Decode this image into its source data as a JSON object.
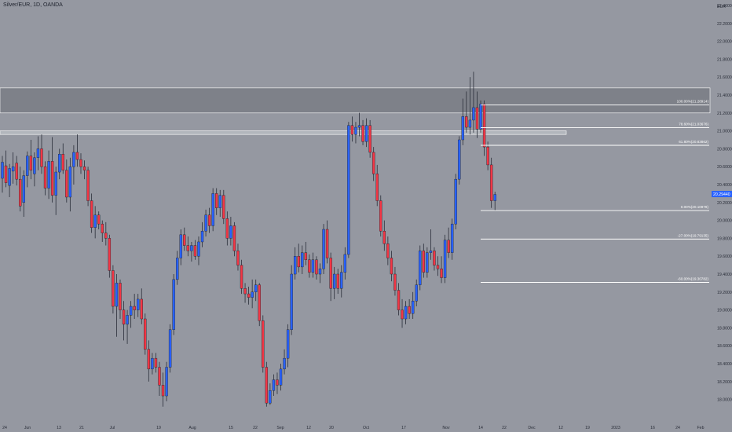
{
  "header": {
    "symbol": "Silver/EUR, 1D, OANDA",
    "currency": "EUR"
  },
  "colors": {
    "background": "#9598a1",
    "up": "#2962ff",
    "down": "#f23645",
    "wick": "#2a2e39",
    "zone": "#787b86",
    "level_line": "#ffffff",
    "price_tag": "#2962ff"
  },
  "chart_data": {
    "type": "candlestick",
    "ylim": [
      17.9,
      22.4
    ],
    "y_ticks": [
      "22.40000",
      "22.20000",
      "22.00000",
      "21.80000",
      "21.60000",
      "21.40000",
      "21.20000",
      "21.00000",
      "20.80000",
      "20.60000",
      "20.40000",
      "20.20000",
      "20.00000",
      "19.80000",
      "19.60000",
      "19.40000",
      "19.20000",
      "19.00000",
      "18.80000",
      "18.60000",
      "18.40000",
      "18.20000",
      "18.00000"
    ],
    "x_ticks": [
      "24",
      "Jun",
      "13",
      "21",
      "Jul",
      "19",
      "Aug",
      "15",
      "22",
      "Sep",
      "12",
      "20",
      "Oct",
      "17",
      "Nov",
      "14",
      "22",
      "Dec",
      "12",
      "19",
      "2023",
      "16",
      "24",
      "Feb"
    ],
    "current_price": "20.29440",
    "fib_levels": [
      {
        "label": "100.00%(21.28914)",
        "value": 21.28914
      },
      {
        "label": "78.60%(21.03676)",
        "value": 21.03676
      },
      {
        "label": "61.80%(20.83862)",
        "value": 20.83862
      },
      {
        "label": "0.00%(20.10978)",
        "value": 20.10978
      },
      {
        "label": "-27.00%(19.79135)",
        "value": 19.79135
      },
      {
        "label": "-60.00%(19.30782)",
        "value": 19.30782
      }
    ],
    "zones": [
      {
        "name": "upper-zone",
        "from": 21.2,
        "to": 21.48
      },
      {
        "name": "thin-zone",
        "from": 20.96,
        "to": 21.0
      }
    ],
    "candles": [
      {
        "o": 20.47,
        "h": 20.72,
        "l": 20.31,
        "c": 20.65
      },
      {
        "o": 20.61,
        "h": 20.78,
        "l": 20.37,
        "c": 20.42
      },
      {
        "o": 20.39,
        "h": 20.63,
        "l": 20.26,
        "c": 20.58
      },
      {
        "o": 20.55,
        "h": 20.76,
        "l": 20.41,
        "c": 20.6
      },
      {
        "o": 20.64,
        "h": 20.72,
        "l": 20.39,
        "c": 20.46
      },
      {
        "o": 20.46,
        "h": 20.6,
        "l": 20.1,
        "c": 20.16
      },
      {
        "o": 20.2,
        "h": 20.56,
        "l": 20.04,
        "c": 20.5
      },
      {
        "o": 20.5,
        "h": 20.77,
        "l": 20.37,
        "c": 20.72
      },
      {
        "o": 20.72,
        "h": 20.9,
        "l": 20.46,
        "c": 20.56
      },
      {
        "o": 20.52,
        "h": 20.76,
        "l": 20.38,
        "c": 20.7
      },
      {
        "o": 20.7,
        "h": 20.94,
        "l": 20.56,
        "c": 20.8
      },
      {
        "o": 20.8,
        "h": 20.96,
        "l": 20.52,
        "c": 20.6
      },
      {
        "o": 20.6,
        "h": 20.66,
        "l": 20.28,
        "c": 20.36
      },
      {
        "o": 20.36,
        "h": 20.78,
        "l": 20.24,
        "c": 20.66
      },
      {
        "o": 20.66,
        "h": 20.93,
        "l": 20.2,
        "c": 20.28
      },
      {
        "o": 20.28,
        "h": 20.6,
        "l": 20.06,
        "c": 20.54
      },
      {
        "o": 20.54,
        "h": 20.8,
        "l": 20.46,
        "c": 20.74
      },
      {
        "o": 20.74,
        "h": 20.86,
        "l": 20.52,
        "c": 20.56
      },
      {
        "o": 20.56,
        "h": 20.68,
        "l": 20.2,
        "c": 20.26
      },
      {
        "o": 20.26,
        "h": 20.7,
        "l": 20.1,
        "c": 20.6
      },
      {
        "o": 20.6,
        "h": 20.84,
        "l": 20.4,
        "c": 20.76
      },
      {
        "o": 20.76,
        "h": 20.96,
        "l": 20.6,
        "c": 20.68
      },
      {
        "o": 20.68,
        "h": 20.75,
        "l": 20.52,
        "c": 20.6
      },
      {
        "o": 20.6,
        "h": 20.67,
        "l": 20.46,
        "c": 20.56
      },
      {
        "o": 20.56,
        "h": 20.6,
        "l": 20.16,
        "c": 20.22
      },
      {
        "o": 20.22,
        "h": 20.3,
        "l": 19.86,
        "c": 19.92
      },
      {
        "o": 19.92,
        "h": 20.16,
        "l": 19.8,
        "c": 20.06
      },
      {
        "o": 20.06,
        "h": 20.1,
        "l": 19.9,
        "c": 19.96
      },
      {
        "o": 19.96,
        "h": 20.0,
        "l": 19.76,
        "c": 19.86
      },
      {
        "o": 19.86,
        "h": 19.98,
        "l": 19.72,
        "c": 19.8
      },
      {
        "o": 19.8,
        "h": 19.84,
        "l": 19.36,
        "c": 19.44
      },
      {
        "o": 19.44,
        "h": 19.5,
        "l": 18.96,
        "c": 19.04
      },
      {
        "o": 19.04,
        "h": 19.4,
        "l": 18.7,
        "c": 19.3
      },
      {
        "o": 19.3,
        "h": 19.34,
        "l": 18.9,
        "c": 19.0
      },
      {
        "o": 19.0,
        "h": 19.1,
        "l": 18.66,
        "c": 18.84
      },
      {
        "o": 18.84,
        "h": 19.0,
        "l": 18.62,
        "c": 18.94
      },
      {
        "o": 18.94,
        "h": 19.1,
        "l": 18.8,
        "c": 19.04
      },
      {
        "o": 19.04,
        "h": 19.18,
        "l": 18.9,
        "c": 19.0
      },
      {
        "o": 19.0,
        "h": 19.18,
        "l": 18.92,
        "c": 19.12
      },
      {
        "o": 19.12,
        "h": 19.24,
        "l": 18.84,
        "c": 18.9
      },
      {
        "o": 18.9,
        "h": 18.96,
        "l": 18.5,
        "c": 18.56
      },
      {
        "o": 18.56,
        "h": 18.66,
        "l": 18.2,
        "c": 18.34
      },
      {
        "o": 18.34,
        "h": 18.52,
        "l": 18.28,
        "c": 18.46
      },
      {
        "o": 18.46,
        "h": 18.52,
        "l": 18.3,
        "c": 18.36
      },
      {
        "o": 18.36,
        "h": 18.42,
        "l": 18.04,
        "c": 18.16
      },
      {
        "o": 18.16,
        "h": 18.3,
        "l": 17.92,
        "c": 18.04
      },
      {
        "o": 18.04,
        "h": 18.42,
        "l": 17.98,
        "c": 18.36
      },
      {
        "o": 18.36,
        "h": 18.84,
        "l": 18.3,
        "c": 18.78
      },
      {
        "o": 18.78,
        "h": 19.4,
        "l": 18.72,
        "c": 19.34
      },
      {
        "o": 19.34,
        "h": 19.66,
        "l": 19.28,
        "c": 19.58
      },
      {
        "o": 19.58,
        "h": 19.9,
        "l": 19.5,
        "c": 19.84
      },
      {
        "o": 19.84,
        "h": 19.92,
        "l": 19.66,
        "c": 19.72
      },
      {
        "o": 19.72,
        "h": 19.82,
        "l": 19.6,
        "c": 19.66
      },
      {
        "o": 19.66,
        "h": 19.76,
        "l": 19.54,
        "c": 19.72
      },
      {
        "o": 19.72,
        "h": 19.78,
        "l": 19.56,
        "c": 19.6
      },
      {
        "o": 19.6,
        "h": 19.82,
        "l": 19.5,
        "c": 19.76
      },
      {
        "o": 19.76,
        "h": 19.98,
        "l": 19.7,
        "c": 19.88
      },
      {
        "o": 19.88,
        "h": 20.12,
        "l": 19.82,
        "c": 20.06
      },
      {
        "o": 20.06,
        "h": 20.14,
        "l": 19.86,
        "c": 19.94
      },
      {
        "o": 19.94,
        "h": 20.36,
        "l": 19.88,
        "c": 20.3
      },
      {
        "o": 20.3,
        "h": 20.36,
        "l": 20.06,
        "c": 20.14
      },
      {
        "o": 20.14,
        "h": 20.34,
        "l": 20.04,
        "c": 20.28
      },
      {
        "o": 20.28,
        "h": 20.34,
        "l": 19.96,
        "c": 20.02
      },
      {
        "o": 20.02,
        "h": 20.1,
        "l": 19.72,
        "c": 19.8
      },
      {
        "o": 19.8,
        "h": 20.04,
        "l": 19.72,
        "c": 19.94
      },
      {
        "o": 19.94,
        "h": 19.98,
        "l": 19.6,
        "c": 19.66
      },
      {
        "o": 19.66,
        "h": 19.74,
        "l": 19.44,
        "c": 19.5
      },
      {
        "o": 19.5,
        "h": 19.56,
        "l": 19.18,
        "c": 19.24
      },
      {
        "o": 19.24,
        "h": 19.3,
        "l": 19.08,
        "c": 19.18
      },
      {
        "o": 19.18,
        "h": 19.26,
        "l": 19.06,
        "c": 19.14
      },
      {
        "o": 19.14,
        "h": 19.34,
        "l": 19.02,
        "c": 19.2
      },
      {
        "o": 19.2,
        "h": 19.34,
        "l": 19.1,
        "c": 19.28
      },
      {
        "o": 19.28,
        "h": 19.3,
        "l": 18.82,
        "c": 18.88
      },
      {
        "o": 18.88,
        "h": 18.94,
        "l": 18.3,
        "c": 18.36
      },
      {
        "o": 18.36,
        "h": 18.42,
        "l": 17.92,
        "c": 17.96
      },
      {
        "o": 17.96,
        "h": 18.18,
        "l": 17.94,
        "c": 18.1
      },
      {
        "o": 18.1,
        "h": 18.28,
        "l": 18.04,
        "c": 18.22
      },
      {
        "o": 18.22,
        "h": 18.3,
        "l": 18.06,
        "c": 18.16
      },
      {
        "o": 18.16,
        "h": 18.4,
        "l": 18.1,
        "c": 18.34
      },
      {
        "o": 18.34,
        "h": 18.56,
        "l": 18.28,
        "c": 18.46
      },
      {
        "o": 18.46,
        "h": 18.84,
        "l": 18.36,
        "c": 18.78
      },
      {
        "o": 18.78,
        "h": 19.5,
        "l": 18.72,
        "c": 19.4
      },
      {
        "o": 19.4,
        "h": 19.7,
        "l": 19.34,
        "c": 19.6
      },
      {
        "o": 19.6,
        "h": 19.74,
        "l": 19.42,
        "c": 19.48
      },
      {
        "o": 19.48,
        "h": 19.72,
        "l": 19.4,
        "c": 19.64
      },
      {
        "o": 19.64,
        "h": 19.76,
        "l": 19.5,
        "c": 19.56
      },
      {
        "o": 19.56,
        "h": 19.62,
        "l": 19.36,
        "c": 19.42
      },
      {
        "o": 19.42,
        "h": 19.64,
        "l": 19.36,
        "c": 19.56
      },
      {
        "o": 19.56,
        "h": 19.6,
        "l": 19.34,
        "c": 19.4
      },
      {
        "o": 19.4,
        "h": 19.52,
        "l": 19.3,
        "c": 19.46
      },
      {
        "o": 19.46,
        "h": 19.96,
        "l": 19.4,
        "c": 19.9
      },
      {
        "o": 19.9,
        "h": 20.0,
        "l": 19.52,
        "c": 19.58
      },
      {
        "o": 19.58,
        "h": 19.64,
        "l": 19.1,
        "c": 19.24
      },
      {
        "o": 19.24,
        "h": 19.48,
        "l": 19.12,
        "c": 19.4
      },
      {
        "o": 19.4,
        "h": 19.46,
        "l": 19.18,
        "c": 19.24
      },
      {
        "o": 19.24,
        "h": 19.5,
        "l": 19.14,
        "c": 19.42
      },
      {
        "o": 19.42,
        "h": 19.7,
        "l": 19.34,
        "c": 19.62
      },
      {
        "o": 19.62,
        "h": 21.1,
        "l": 19.58,
        "c": 21.06
      },
      {
        "o": 21.06,
        "h": 21.16,
        "l": 20.88,
        "c": 20.96
      },
      {
        "o": 20.96,
        "h": 21.1,
        "l": 20.86,
        "c": 21.04
      },
      {
        "o": 21.04,
        "h": 21.2,
        "l": 20.94,
        "c": 21.06
      },
      {
        "o": 21.06,
        "h": 21.12,
        "l": 20.84,
        "c": 20.88
      },
      {
        "o": 20.88,
        "h": 21.14,
        "l": 20.82,
        "c": 21.06
      },
      {
        "o": 21.06,
        "h": 21.12,
        "l": 20.7,
        "c": 20.76
      },
      {
        "o": 20.76,
        "h": 20.82,
        "l": 20.44,
        "c": 20.52
      },
      {
        "o": 20.52,
        "h": 20.62,
        "l": 20.16,
        "c": 20.22
      },
      {
        "o": 20.22,
        "h": 20.28,
        "l": 19.82,
        "c": 19.88
      },
      {
        "o": 19.88,
        "h": 20.0,
        "l": 19.66,
        "c": 19.74
      },
      {
        "o": 19.74,
        "h": 19.82,
        "l": 19.5,
        "c": 19.58
      },
      {
        "o": 19.58,
        "h": 19.66,
        "l": 19.32,
        "c": 19.4
      },
      {
        "o": 19.4,
        "h": 19.48,
        "l": 19.16,
        "c": 19.22
      },
      {
        "o": 19.22,
        "h": 19.3,
        "l": 18.94,
        "c": 19.0
      },
      {
        "o": 19.0,
        "h": 19.12,
        "l": 18.8,
        "c": 18.9
      },
      {
        "o": 18.9,
        "h": 19.1,
        "l": 18.84,
        "c": 19.04
      },
      {
        "o": 19.04,
        "h": 19.12,
        "l": 18.9,
        "c": 18.96
      },
      {
        "o": 18.96,
        "h": 19.2,
        "l": 18.9,
        "c": 19.1
      },
      {
        "o": 19.1,
        "h": 19.34,
        "l": 19.04,
        "c": 19.28
      },
      {
        "o": 19.28,
        "h": 19.72,
        "l": 19.22,
        "c": 19.66
      },
      {
        "o": 19.66,
        "h": 19.74,
        "l": 19.36,
        "c": 19.42
      },
      {
        "o": 19.42,
        "h": 19.7,
        "l": 19.36,
        "c": 19.64
      },
      {
        "o": 19.64,
        "h": 19.9,
        "l": 19.56,
        "c": 19.66
      },
      {
        "o": 19.66,
        "h": 19.7,
        "l": 19.44,
        "c": 19.5
      },
      {
        "o": 19.5,
        "h": 19.6,
        "l": 19.38,
        "c": 19.46
      },
      {
        "o": 19.46,
        "h": 19.6,
        "l": 19.3,
        "c": 19.36
      },
      {
        "o": 19.36,
        "h": 19.84,
        "l": 19.3,
        "c": 19.78
      },
      {
        "o": 19.78,
        "h": 19.92,
        "l": 19.58,
        "c": 19.64
      },
      {
        "o": 19.64,
        "h": 20.02,
        "l": 19.56,
        "c": 19.96
      },
      {
        "o": 19.96,
        "h": 20.52,
        "l": 19.9,
        "c": 20.46
      },
      {
        "o": 20.46,
        "h": 20.94,
        "l": 20.4,
        "c": 20.9
      },
      {
        "o": 20.9,
        "h": 21.36,
        "l": 20.84,
        "c": 21.16
      },
      {
        "o": 21.16,
        "h": 21.44,
        "l": 20.98,
        "c": 21.04
      },
      {
        "o": 21.04,
        "h": 21.6,
        "l": 20.96,
        "c": 21.12
      },
      {
        "o": 21.12,
        "h": 21.66,
        "l": 20.98,
        "c": 21.26
      },
      {
        "o": 21.26,
        "h": 21.44,
        "l": 20.92,
        "c": 21.02
      },
      {
        "o": 21.02,
        "h": 21.34,
        "l": 20.98,
        "c": 21.3
      },
      {
        "o": 21.3,
        "h": 21.34,
        "l": 20.72,
        "c": 20.82
      },
      {
        "o": 20.82,
        "h": 20.88,
        "l": 20.56,
        "c": 20.62
      },
      {
        "o": 20.62,
        "h": 20.7,
        "l": 20.14,
        "c": 20.22
      },
      {
        "o": 20.22,
        "h": 20.32,
        "l": 20.11,
        "c": 20.29
      }
    ]
  }
}
